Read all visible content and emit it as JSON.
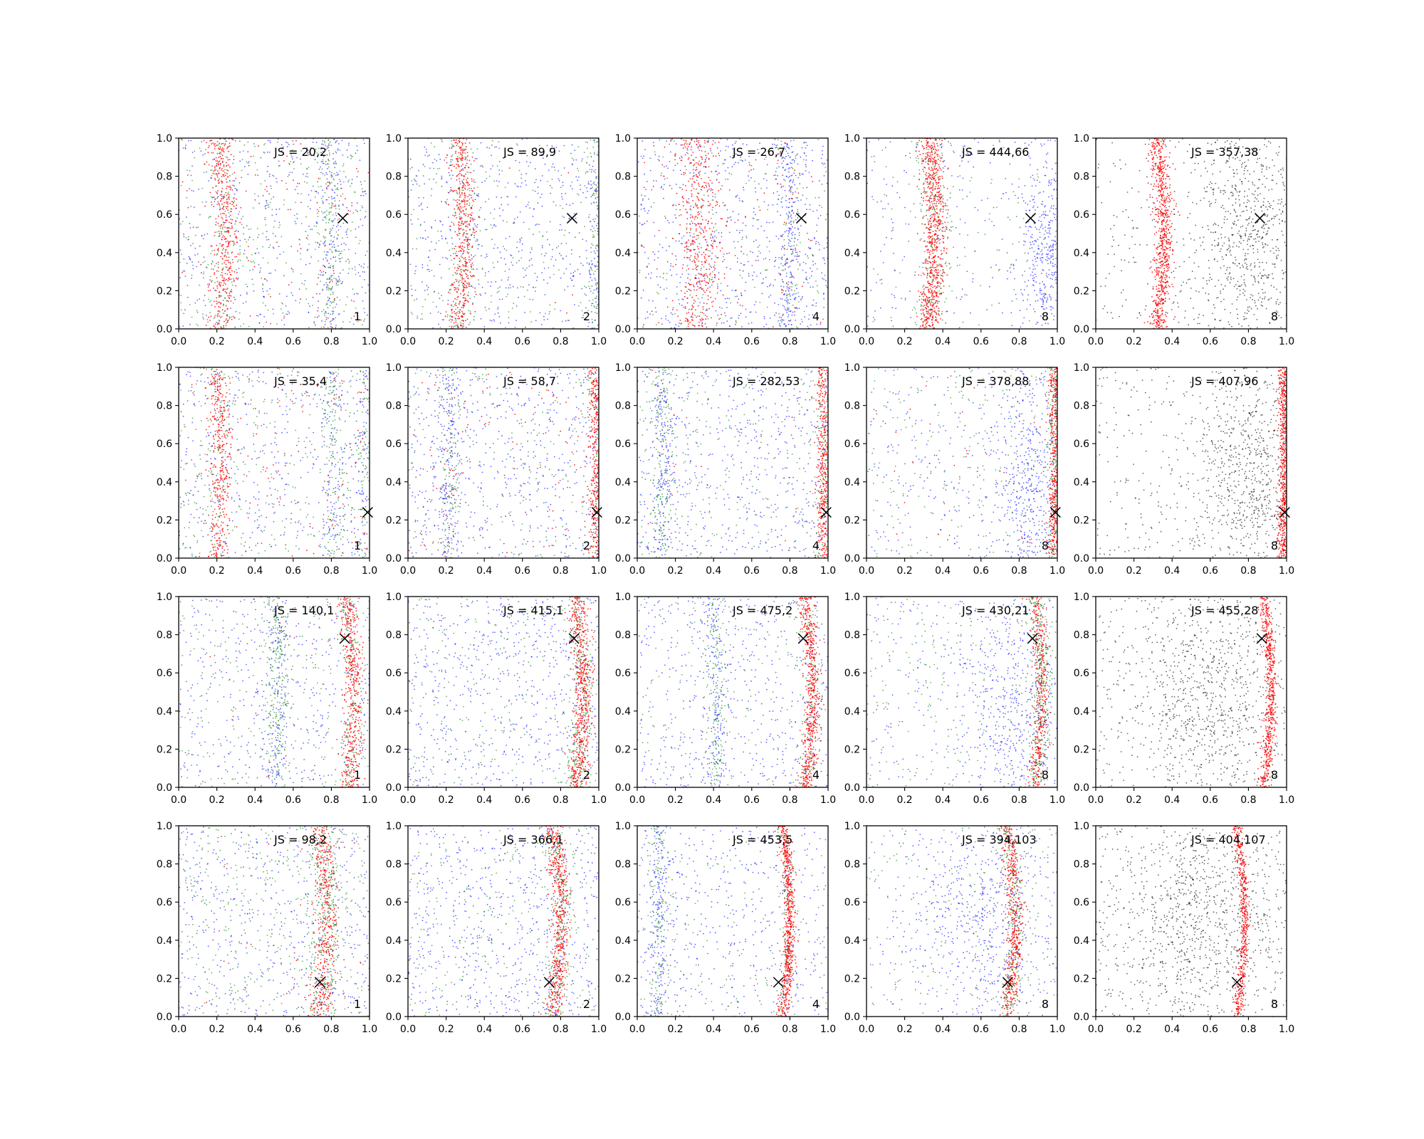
{
  "chart_data": {
    "type": "scatter",
    "grid": false,
    "xlim": [
      0.0,
      1.0
    ],
    "ylim": [
      0.0,
      1.0
    ],
    "x_ticks": [
      "0.0",
      "0.2",
      "0.4",
      "0.6",
      "0.8",
      "1.0"
    ],
    "y_ticks": [
      "0.0",
      "0.2",
      "0.4",
      "0.6",
      "0.8",
      "1.0"
    ],
    "colors": {
      "red": "#ff0000",
      "green": "#008000",
      "blue": "#0000ff",
      "black": "#000000"
    },
    "panels": [
      {
        "js_label": "JS = 20,2",
        "corner_label": "1",
        "marker": {
          "x": 0.86,
          "y": 0.58
        },
        "curve": {
          "x0": 0.22,
          "amp": 0.025,
          "phase": 0.0
        },
        "mix": {
          "red": 0.33,
          "green": 0.33,
          "blue": 0.34
        },
        "band_fraction": 0.3,
        "band_width": 0.035,
        "extra_bands": [
          0.78
        ],
        "black_mode": false,
        "blue_cluster": null
      },
      {
        "js_label": "JS = 89,9",
        "corner_label": "2",
        "marker": {
          "x": 0.86,
          "y": 0.58
        },
        "curve": {
          "x0": 0.26,
          "amp": 0.04,
          "phase": 0.0
        },
        "mix": {
          "red": 0.3,
          "green": 0.3,
          "blue": 0.4
        },
        "band_fraction": 0.45,
        "band_width": 0.03,
        "extra_bands": [
          0.99
        ],
        "black_mode": false,
        "blue_cluster": null
      },
      {
        "js_label": "JS = 26,7",
        "corner_label": "4",
        "marker": {
          "x": 0.86,
          "y": 0.58
        },
        "curve": {
          "x0": 0.3,
          "amp": 0.03,
          "phase": 0.0
        },
        "mix": {
          "red": 0.35,
          "green": 0.15,
          "blue": 0.5
        },
        "band_fraction": 0.3,
        "band_width": 0.06,
        "extra_bands": [
          0.78
        ],
        "black_mode": false,
        "blue_cluster": null
      },
      {
        "js_label": "JS = 444,66",
        "corner_label": "8",
        "marker": {
          "x": 0.86,
          "y": 0.58
        },
        "curve": {
          "x0": 0.32,
          "amp": 0.04,
          "phase": 0.0
        },
        "mix": {
          "red": 0.45,
          "green": 0.2,
          "blue": 0.35
        },
        "band_fraction": 0.6,
        "band_width": 0.03,
        "extra_bands": [],
        "black_mode": false,
        "blue_cluster": {
          "x": 0.95,
          "y": 0.4,
          "sx": 0.07,
          "sy": 0.25
        }
      },
      {
        "js_label": "JS = 357,38",
        "corner_label": "8",
        "marker": {
          "x": 0.86,
          "y": 0.58
        },
        "curve": {
          "x0": 0.32,
          "amp": 0.04,
          "phase": 0.0
        },
        "mix": {
          "red": 0.45,
          "green": 0.0,
          "blue": 0.0,
          "black": 0.55
        },
        "band_fraction": 0.8,
        "band_width": 0.025,
        "extra_bands": [],
        "black_mode": true,
        "blue_cluster": {
          "x": 0.8,
          "y": 0.5,
          "sx": 0.15,
          "sy": 0.3
        }
      },
      {
        "js_label": "JS = 35,4",
        "corner_label": "1",
        "marker": {
          "x": 0.99,
          "y": 0.24
        },
        "curve": {
          "x0": 0.2,
          "amp": 0.02,
          "phase": 0.0
        },
        "mix": {
          "red": 0.33,
          "green": 0.33,
          "blue": 0.34
        },
        "band_fraction": 0.25,
        "band_width": 0.03,
        "extra_bands": [
          0.8,
          0.97
        ],
        "black_mode": false,
        "blue_cluster": null
      },
      {
        "js_label": "JS = 58,7",
        "corner_label": "2",
        "marker": {
          "x": 0.99,
          "y": 0.24
        },
        "curve": {
          "x0": 0.98,
          "amp": 0.01,
          "phase": 0.0
        },
        "mix": {
          "red": 0.35,
          "green": 0.2,
          "blue": 0.45
        },
        "band_fraction": 0.3,
        "band_width": 0.02,
        "extra_bands": [
          0.2
        ],
        "black_mode": false,
        "blue_cluster": null
      },
      {
        "js_label": "JS = 282,53",
        "corner_label": "4",
        "marker": {
          "x": 0.99,
          "y": 0.24
        },
        "curve": {
          "x0": 0.97,
          "amp": 0.01,
          "phase": 0.0
        },
        "mix": {
          "red": 0.3,
          "green": 0.25,
          "blue": 0.45
        },
        "band_fraction": 0.45,
        "band_width": 0.02,
        "extra_bands": [
          0.12
        ],
        "black_mode": false,
        "blue_cluster": null
      },
      {
        "js_label": "JS = 378,88",
        "corner_label": "8",
        "marker": {
          "x": 0.99,
          "y": 0.24
        },
        "curve": {
          "x0": 0.98,
          "amp": 0.01,
          "phase": 0.0
        },
        "mix": {
          "red": 0.3,
          "green": 0.25,
          "blue": 0.45
        },
        "band_fraction": 0.45,
        "band_width": 0.015,
        "extra_bands": [],
        "black_mode": false,
        "blue_cluster": {
          "x": 0.85,
          "y": 0.4,
          "sx": 0.1,
          "sy": 0.3
        }
      },
      {
        "js_label": "JS = 407,96",
        "corner_label": "8",
        "marker": {
          "x": 0.99,
          "y": 0.24
        },
        "curve": {
          "x0": 0.98,
          "amp": 0.01,
          "phase": 0.0
        },
        "mix": {
          "red": 0.4,
          "green": 0.0,
          "blue": 0.0,
          "black": 0.6
        },
        "band_fraction": 0.8,
        "band_width": 0.015,
        "extra_bands": [],
        "black_mode": true,
        "blue_cluster": {
          "x": 0.8,
          "y": 0.4,
          "sx": 0.15,
          "sy": 0.3
        }
      },
      {
        "js_label": "JS = 140,1",
        "corner_label": "1",
        "marker": {
          "x": 0.87,
          "y": 0.78
        },
        "curve": {
          "x0": 0.88,
          "amp": 0.04,
          "phase": 0.0
        },
        "mix": {
          "red": 0.3,
          "green": 0.35,
          "blue": 0.35
        },
        "band_fraction": 0.45,
        "band_width": 0.025,
        "extra_bands": [
          0.5
        ],
        "black_mode": false,
        "blue_cluster": null
      },
      {
        "js_label": "JS = 415,1",
        "corner_label": "2",
        "marker": {
          "x": 0.87,
          "y": 0.78
        },
        "curve": {
          "x0": 0.88,
          "amp": 0.04,
          "phase": 0.0
        },
        "mix": {
          "red": 0.35,
          "green": 0.25,
          "blue": 0.4
        },
        "band_fraction": 0.55,
        "band_width": 0.025,
        "extra_bands": [],
        "black_mode": false,
        "blue_cluster": null
      },
      {
        "js_label": "JS = 475,2",
        "corner_label": "4",
        "marker": {
          "x": 0.87,
          "y": 0.78
        },
        "curve": {
          "x0": 0.88,
          "amp": 0.04,
          "phase": 0.0
        },
        "mix": {
          "red": 0.35,
          "green": 0.25,
          "blue": 0.4
        },
        "band_fraction": 0.55,
        "band_width": 0.02,
        "extra_bands": [
          0.4
        ],
        "black_mode": false,
        "blue_cluster": null
      },
      {
        "js_label": "JS = 430,21",
        "corner_label": "8",
        "marker": {
          "x": 0.87,
          "y": 0.78
        },
        "curve": {
          "x0": 0.88,
          "amp": 0.04,
          "phase": 0.0
        },
        "mix": {
          "red": 0.25,
          "green": 0.3,
          "blue": 0.45
        },
        "band_fraction": 0.55,
        "band_width": 0.02,
        "extra_bands": [],
        "black_mode": false,
        "blue_cluster": {
          "x": 0.75,
          "y": 0.45,
          "sx": 0.15,
          "sy": 0.3
        }
      },
      {
        "js_label": "JS = 455,28",
        "corner_label": "8",
        "marker": {
          "x": 0.87,
          "y": 0.78
        },
        "curve": {
          "x0": 0.88,
          "amp": 0.04,
          "phase": 0.0
        },
        "mix": {
          "red": 0.35,
          "green": 0.0,
          "blue": 0.0,
          "black": 0.65
        },
        "band_fraction": 0.8,
        "band_width": 0.015,
        "extra_bands": [],
        "black_mode": true,
        "blue_cluster": {
          "x": 0.6,
          "y": 0.5,
          "sx": 0.2,
          "sy": 0.3
        }
      },
      {
        "js_label": "JS = 98,2",
        "corner_label": "1",
        "marker": {
          "x": 0.74,
          "y": 0.18
        },
        "curve": {
          "x0": 0.74,
          "amp": 0.04,
          "phase": 0.0
        },
        "mix": {
          "red": 0.3,
          "green": 0.35,
          "blue": 0.35
        },
        "band_fraction": 0.45,
        "band_width": 0.03,
        "extra_bands": [],
        "black_mode": false,
        "blue_cluster": null
      },
      {
        "js_label": "JS = 366,1",
        "corner_label": "2",
        "marker": {
          "x": 0.74,
          "y": 0.18
        },
        "curve": {
          "x0": 0.76,
          "amp": 0.04,
          "phase": 0.0
        },
        "mix": {
          "red": 0.35,
          "green": 0.25,
          "blue": 0.4
        },
        "band_fraction": 0.55,
        "band_width": 0.025,
        "extra_bands": [],
        "black_mode": false,
        "blue_cluster": null
      },
      {
        "js_label": "JS = 453,5",
        "corner_label": "4",
        "marker": {
          "x": 0.74,
          "y": 0.18
        },
        "curve": {
          "x0": 0.76,
          "amp": 0.04,
          "phase": 0.0
        },
        "mix": {
          "red": 0.4,
          "green": 0.2,
          "blue": 0.4
        },
        "band_fraction": 0.55,
        "band_width": 0.015,
        "extra_bands": [
          0.1
        ],
        "black_mode": false,
        "blue_cluster": null
      },
      {
        "js_label": "JS = 394,103",
        "corner_label": "8",
        "marker": {
          "x": 0.74,
          "y": 0.18
        },
        "curve": {
          "x0": 0.74,
          "amp": 0.04,
          "phase": 0.0
        },
        "mix": {
          "red": 0.3,
          "green": 0.25,
          "blue": 0.45
        },
        "band_fraction": 0.55,
        "band_width": 0.02,
        "extra_bands": [],
        "black_mode": false,
        "blue_cluster": {
          "x": 0.6,
          "y": 0.5,
          "sx": 0.18,
          "sy": 0.3
        }
      },
      {
        "js_label": "JS = 404,107",
        "corner_label": "8",
        "marker": {
          "x": 0.74,
          "y": 0.18
        },
        "curve": {
          "x0": 0.74,
          "amp": 0.04,
          "phase": 0.0
        },
        "mix": {
          "red": 0.3,
          "green": 0.0,
          "blue": 0.0,
          "black": 0.7
        },
        "band_fraction": 0.8,
        "band_width": 0.012,
        "extra_bands": [],
        "black_mode": true,
        "blue_cluster": {
          "x": 0.55,
          "y": 0.5,
          "sx": 0.2,
          "sy": 0.3
        }
      }
    ]
  }
}
